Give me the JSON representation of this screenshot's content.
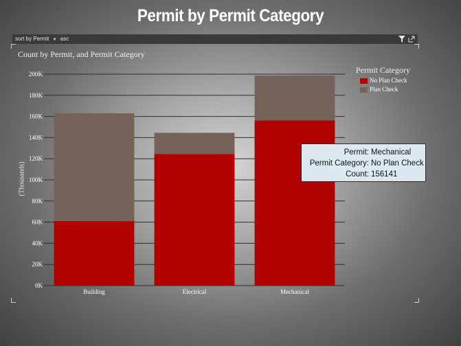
{
  "title": "Permit by Permit Category",
  "toolbar": {
    "sort_by": "sort by",
    "sort_field": "Permit",
    "sort_order": "asc"
  },
  "chart_data": {
    "type": "bar",
    "stacked": true,
    "title": "Count by Permit, and Permit Category",
    "ylabel": "(Thousands)",
    "xlabel": "",
    "categories": [
      "Building",
      "Electrical",
      "Mechanical"
    ],
    "series": [
      {
        "name": "No Plan Check",
        "color": "#b00000",
        "values": [
          61,
          124.5,
          156.141
        ]
      },
      {
        "name": "Plan Check",
        "color": "#756258",
        "values": [
          102,
          20,
          42.5
        ]
      }
    ],
    "ylim": [
      0,
      200
    ],
    "yticks": [
      "0K",
      "20K",
      "40K",
      "60K",
      "80K",
      "100K",
      "120K",
      "140K",
      "160K",
      "180K",
      "200K"
    ],
    "grid": true,
    "legend_title": "Permit Category",
    "legend_position": "top-right"
  },
  "tooltip": {
    "rows": [
      {
        "key": "Permit:",
        "value": "Mechanical"
      },
      {
        "key": "Permit Category:",
        "value": "No Plan Check"
      },
      {
        "key": "Count:",
        "value": "156141"
      }
    ]
  }
}
